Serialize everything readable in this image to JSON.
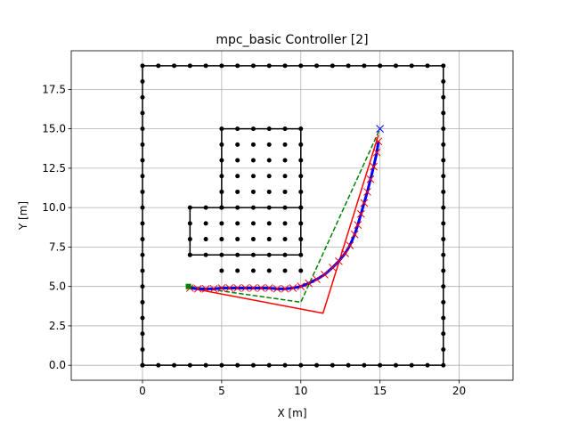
{
  "chart_data": {
    "type": "trajectory",
    "title": "mpc_basic Controller [2]",
    "x_label": "X [m]",
    "y_label": "Y [m]",
    "xlim": [
      -4.5,
      23.4
    ],
    "ylim": [
      -0.95,
      19.95
    ],
    "xticks": [
      0,
      5,
      10,
      15,
      20
    ],
    "yticks": [
      {
        "value": 0,
        "label": "0.0"
      },
      2.5,
      {
        "value": 5,
        "label": "5.0"
      },
      7.5,
      {
        "value": 10,
        "label": "10.0"
      },
      12.5,
      {
        "value": 15,
        "label": "15.0"
      },
      17.5
    ],
    "grid": true,
    "series": [
      {
        "color": "#000000",
        "marker": "o",
        "linestyle": "-",
        "linewidth": 1.5,
        "markersize": 2.5,
        "x": [
          0,
          1,
          2,
          3,
          4,
          5,
          6,
          7,
          8,
          9,
          10,
          11,
          12,
          13,
          14,
          15,
          16,
          17,
          18,
          19,
          19,
          19,
          19,
          19,
          19,
          19,
          19,
          19,
          19,
          19,
          19,
          19,
          19,
          19,
          19,
          19,
          19,
          19,
          19,
          18,
          17,
          16,
          15,
          14,
          13,
          12,
          11,
          10,
          9,
          8,
          7,
          6,
          5,
          4,
          3,
          2,
          1,
          0,
          0,
          0,
          0,
          0,
          0,
          0,
          0,
          0,
          0,
          0,
          0,
          0,
          0,
          0,
          0,
          0,
          0,
          0,
          0
        ],
        "y": [
          0,
          0,
          0,
          0,
          0,
          0,
          0,
          0,
          0,
          0,
          0,
          0,
          0,
          0,
          0,
          0,
          0,
          0,
          0,
          0,
          1,
          2,
          3,
          4,
          5,
          6,
          7,
          8,
          9,
          10,
          11,
          12,
          13,
          14,
          15,
          16,
          17,
          18,
          19,
          19,
          19,
          19,
          19,
          19,
          19,
          19,
          19,
          19,
          19,
          19,
          19,
          19,
          19,
          19,
          19,
          19,
          19,
          19,
          18,
          17,
          16,
          15,
          14,
          13,
          12,
          11,
          10,
          9,
          8,
          7,
          6,
          5,
          4,
          3,
          2,
          1,
          0
        ]
      },
      {
        "color": "#000000",
        "marker": "o",
        "linestyle": "-",
        "linewidth": 1.5,
        "markersize": 2.5,
        "x": [
          3,
          3,
          3,
          3,
          4,
          5,
          5,
          5,
          5,
          5,
          5,
          6,
          7,
          8,
          9,
          10,
          10,
          10,
          10,
          10,
          10,
          10,
          10,
          10,
          9,
          8,
          7,
          6,
          5,
          4,
          3,
          null,
          5,
          6,
          7,
          8,
          9,
          10
        ],
        "y": [
          7,
          8,
          9,
          10,
          10,
          10,
          11,
          12,
          13,
          14,
          15,
          15,
          15,
          15,
          15,
          15,
          14,
          13,
          12,
          11,
          10,
          9,
          8,
          7,
          7,
          7,
          7,
          7,
          7,
          7,
          7,
          null,
          10,
          10,
          10,
          10,
          10,
          10
        ]
      },
      {
        "color": "#000000",
        "marker": "o",
        "linestyle": "none",
        "linewidth": 0,
        "markersize": 2.5,
        "x": [
          6,
          7,
          8,
          9,
          6,
          7,
          8,
          9,
          6,
          7,
          8,
          9,
          6,
          7,
          8,
          9,
          6,
          7,
          8,
          9,
          6,
          7,
          8,
          9,
          6,
          7,
          8,
          9,
          4,
          4,
          5,
          5,
          5,
          10
        ],
        "y": [
          14,
          14,
          14,
          14,
          13,
          13,
          13,
          13,
          12,
          12,
          12,
          12,
          11,
          11,
          11,
          11,
          9,
          9,
          9,
          9,
          8,
          8,
          8,
          8,
          6,
          6,
          6,
          6,
          9,
          8,
          9,
          8,
          6,
          6
        ]
      },
      {
        "color": "#008000",
        "marker": null,
        "linestyle": "--",
        "linewidth": 1.5,
        "markersize": 0,
        "x": [
          3,
          10,
          15
        ],
        "y": [
          5,
          4,
          15
        ]
      },
      {
        "color": "#ff0000",
        "marker": null,
        "linestyle": "-",
        "linewidth": 1.5,
        "markersize": 0,
        "x": [
          3,
          11.4,
          14.9
        ],
        "y": [
          4.9,
          3.3,
          14.6
        ]
      },
      {
        "color": "#0000ff",
        "marker": "x",
        "marker_color": "#ff0000",
        "linestyle": "-",
        "linewidth": 3,
        "markersize": 4,
        "x": [
          3,
          3.5,
          4,
          4.5,
          5,
          5.5,
          6,
          6.5,
          7,
          7.5,
          8,
          8.5,
          9,
          9.5,
          10,
          10.5,
          11,
          11.5,
          12,
          12.4,
          12.8,
          13.1,
          13.4,
          13.6,
          13.8,
          14,
          14.2,
          14.4,
          14.6,
          14.8,
          14.9
        ],
        "y": [
          4.9,
          4.85,
          4.85,
          4.85,
          4.9,
          4.9,
          4.9,
          4.9,
          4.9,
          4.9,
          4.9,
          4.85,
          4.85,
          4.9,
          5.0,
          5.2,
          5.45,
          5.75,
          6.2,
          6.6,
          7.1,
          7.6,
          8.3,
          8.9,
          9.6,
          10.3,
          11.0,
          11.8,
          12.6,
          13.5,
          14.2
        ]
      },
      {
        "color": "#008000",
        "marker": "s",
        "linestyle": "none",
        "linewidth": 0,
        "markersize": 3,
        "x": [
          2.9
        ],
        "y": [
          5
        ]
      },
      {
        "color": "#0000ff",
        "marker": "x",
        "linestyle": "none",
        "linewidth": 0,
        "markersize": 4,
        "x": [
          15
        ],
        "y": [
          15
        ]
      }
    ]
  }
}
